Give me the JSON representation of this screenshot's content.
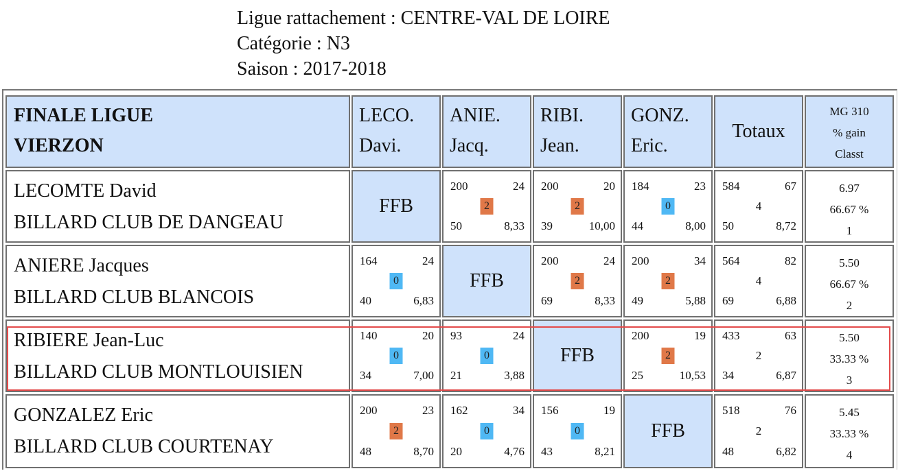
{
  "header": {
    "ligue": "Ligue rattachement : CENTRE-VAL DE LOIRE",
    "categorie": "Catégorie : N3",
    "saison": "Saison : 2017-2018"
  },
  "table": {
    "title_line1": "FINALE LIGUE",
    "title_line2": "VIERZON",
    "columns": [
      {
        "line1": "LECO.",
        "line2": "Davi."
      },
      {
        "line1": "ANIE.",
        "line2": "Jacq."
      },
      {
        "line1": "RIBI.",
        "line2": "Jean."
      },
      {
        "line1": "GONZ.",
        "line2": "Eric."
      }
    ],
    "totaux_label": "Totaux",
    "mg_header": {
      "line1": "MG 310",
      "line2": "% gain",
      "line3": "Classt"
    },
    "ffb_label": "FFB",
    "rows": [
      {
        "name": "LECOMTE David",
        "club": "BILLARD CLUB DE DANGEAU",
        "cells": [
          null,
          {
            "points": "200",
            "reprises": "24",
            "match_points": "2",
            "serie": "50",
            "moyenne": "8,33",
            "result": "win"
          },
          {
            "points": "200",
            "reprises": "20",
            "match_points": "2",
            "serie": "39",
            "moyenne": "10,00",
            "result": "win"
          },
          {
            "points": "184",
            "reprises": "23",
            "match_points": "0",
            "serie": "44",
            "moyenne": "8,00",
            "result": "lose"
          }
        ],
        "totals": {
          "points": "584",
          "reprises": "67",
          "match_points": "4",
          "serie": "50",
          "moyenne": "8,72"
        },
        "mg": {
          "mg": "6.97",
          "gain": "66.67 %",
          "classt": "1"
        }
      },
      {
        "name": "ANIERE Jacques",
        "club": "BILLARD CLUB BLANCOIS",
        "cells": [
          {
            "points": "164",
            "reprises": "24",
            "match_points": "0",
            "serie": "40",
            "moyenne": "6,83",
            "result": "lose"
          },
          null,
          {
            "points": "200",
            "reprises": "24",
            "match_points": "2",
            "serie": "69",
            "moyenne": "8,33",
            "result": "win"
          },
          {
            "points": "200",
            "reprises": "34",
            "match_points": "2",
            "serie": "49",
            "moyenne": "5,88",
            "result": "win"
          }
        ],
        "totals": {
          "points": "564",
          "reprises": "82",
          "match_points": "4",
          "serie": "69",
          "moyenne": "6,88"
        },
        "mg": {
          "mg": "5.50",
          "gain": "66.67 %",
          "classt": "2"
        }
      },
      {
        "name": "RIBIERE Jean-Luc",
        "club": "BILLARD CLUB MONTLOUISIEN",
        "highlighted": true,
        "cells": [
          {
            "points": "140",
            "reprises": "20",
            "match_points": "0",
            "serie": "34",
            "moyenne": "7,00",
            "result": "lose"
          },
          {
            "points": "93",
            "reprises": "24",
            "match_points": "0",
            "serie": "21",
            "moyenne": "3,88",
            "result": "lose"
          },
          null,
          {
            "points": "200",
            "reprises": "19",
            "match_points": "2",
            "serie": "25",
            "moyenne": "10,53",
            "result": "win"
          }
        ],
        "totals": {
          "points": "433",
          "reprises": "63",
          "match_points": "2",
          "serie": "34",
          "moyenne": "6,87"
        },
        "mg": {
          "mg": "5.50",
          "gain": "33.33 %",
          "classt": "3"
        }
      },
      {
        "name": "GONZALEZ Eric",
        "club": "BILLARD CLUB COURTENAY",
        "cells": [
          {
            "points": "200",
            "reprises": "23",
            "match_points": "2",
            "serie": "48",
            "moyenne": "8,70",
            "result": "win"
          },
          {
            "points": "162",
            "reprises": "34",
            "match_points": "0",
            "serie": "20",
            "moyenne": "4,76",
            "result": "lose"
          },
          {
            "points": "156",
            "reprises": "19",
            "match_points": "0",
            "serie": "43",
            "moyenne": "8,21",
            "result": "lose"
          },
          null
        ],
        "totals": {
          "points": "518",
          "reprises": "76",
          "match_points": "2",
          "serie": "48",
          "moyenne": "6,82"
        },
        "mg": {
          "mg": "5.45",
          "gain": "33.33 %",
          "classt": "4"
        }
      }
    ]
  },
  "colors": {
    "header_bg": "#cfe2fb",
    "win_badge": "#e07848",
    "lose_badge": "#4fb8f4",
    "highlight_border": "#e34a4a",
    "cell_border": "#707070"
  }
}
